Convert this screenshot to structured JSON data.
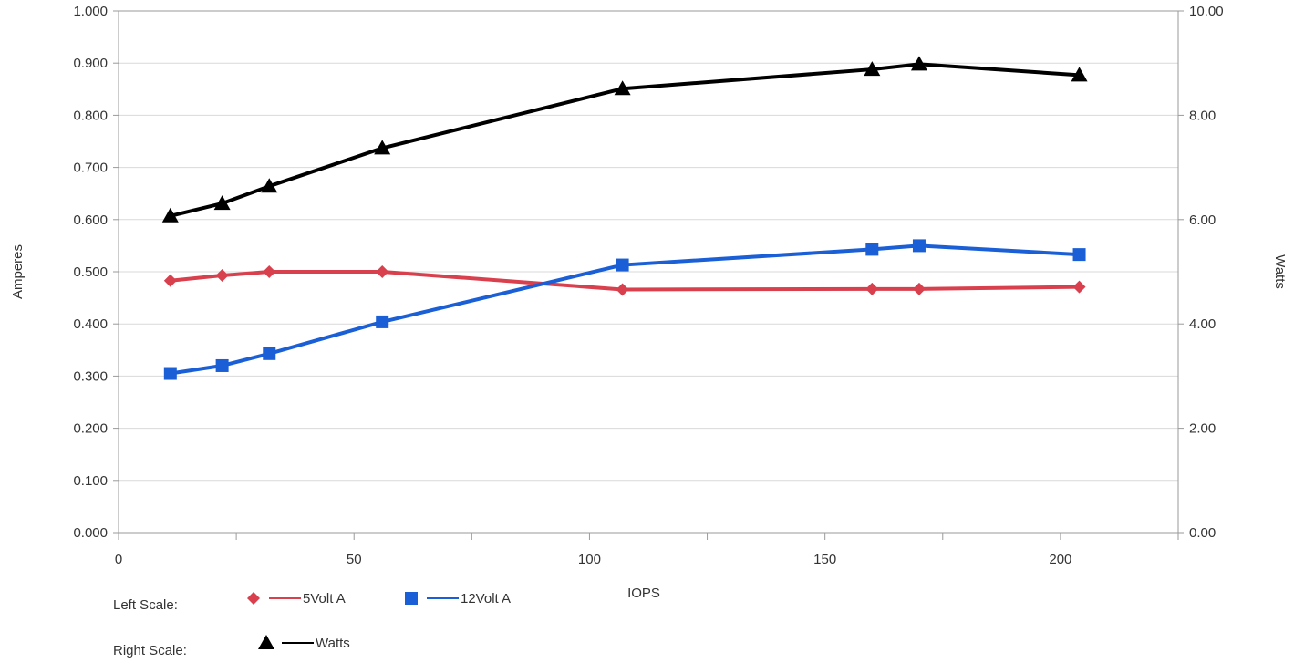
{
  "chart_data": {
    "type": "line",
    "xlabel": "IOPS",
    "ylabel_left": "Amperes",
    "ylabel_right": "Watts",
    "xlim": [
      0,
      225
    ],
    "xticks": [
      "0",
      "50",
      "100",
      "150",
      "200"
    ],
    "ylim_left": [
      0,
      1.0
    ],
    "yticks_left": [
      "0.000",
      "0.100",
      "0.200",
      "0.300",
      "0.400",
      "0.500",
      "0.600",
      "0.700",
      "0.800",
      "0.900",
      "1.000"
    ],
    "ylim_right": [
      0,
      10
    ],
    "yticks_right": [
      "0.00",
      "2.00",
      "4.00",
      "6.00",
      "8.00",
      "10.00"
    ],
    "grid": "horizontal",
    "legend": {
      "left_label": "Left Scale:",
      "right_label": "Right Scale:"
    },
    "series": [
      {
        "name": "5Volt A",
        "axis": "left",
        "color": "#d9404e",
        "marker": "diamond",
        "x": [
          11,
          22,
          32,
          56,
          107,
          160,
          170,
          204
        ],
        "y": [
          0.483,
          0.493,
          0.5,
          0.5,
          0.466,
          0.467,
          0.467,
          0.471
        ]
      },
      {
        "name": "12Volt A",
        "axis": "left",
        "color": "#1a5fd6",
        "marker": "square",
        "x": [
          11,
          22,
          32,
          56,
          107,
          160,
          170,
          204
        ],
        "y": [
          0.305,
          0.32,
          0.343,
          0.404,
          0.513,
          0.543,
          0.55,
          0.533
        ]
      },
      {
        "name": "Watts",
        "axis": "right",
        "color": "#000000",
        "marker": "triangle",
        "x": [
          11,
          22,
          32,
          56,
          107,
          160,
          170,
          204
        ],
        "y": [
          6.07,
          6.31,
          6.64,
          7.37,
          8.51,
          8.88,
          8.98,
          8.77
        ]
      }
    ]
  }
}
